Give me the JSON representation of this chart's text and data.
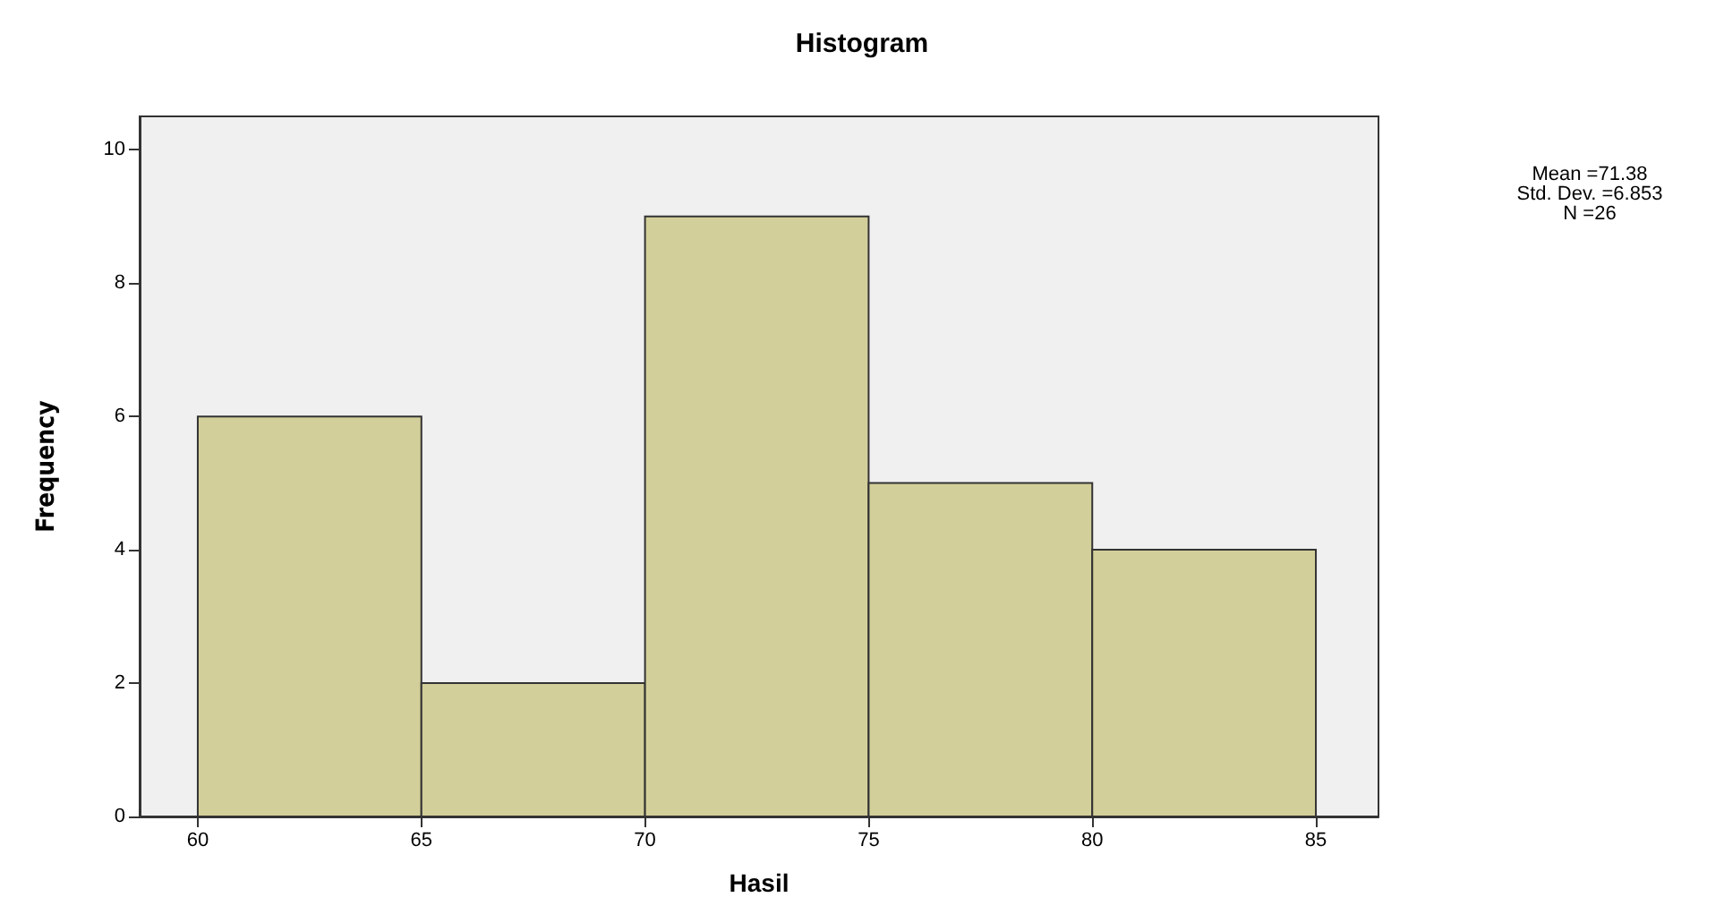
{
  "chart_data": {
    "type": "histogram",
    "title": "Histogram",
    "xlabel": "Hasil",
    "ylabel": "Frequency",
    "bins": [
      60,
      65,
      70,
      75,
      80,
      85
    ],
    "values": [
      6,
      2,
      9,
      5,
      4
    ],
    "color": "#d3cf9a",
    "xlim": [
      58.7,
      86.4
    ],
    "xticks": [
      60,
      65,
      70,
      75,
      80,
      85
    ],
    "ylim": [
      0,
      10.5
    ],
    "yticks": [
      0,
      2,
      4,
      6,
      8,
      10
    ],
    "grid": false,
    "annotations": [
      "Mean =71.38",
      "Std. Dev. =6.853",
      "N =26"
    ]
  }
}
